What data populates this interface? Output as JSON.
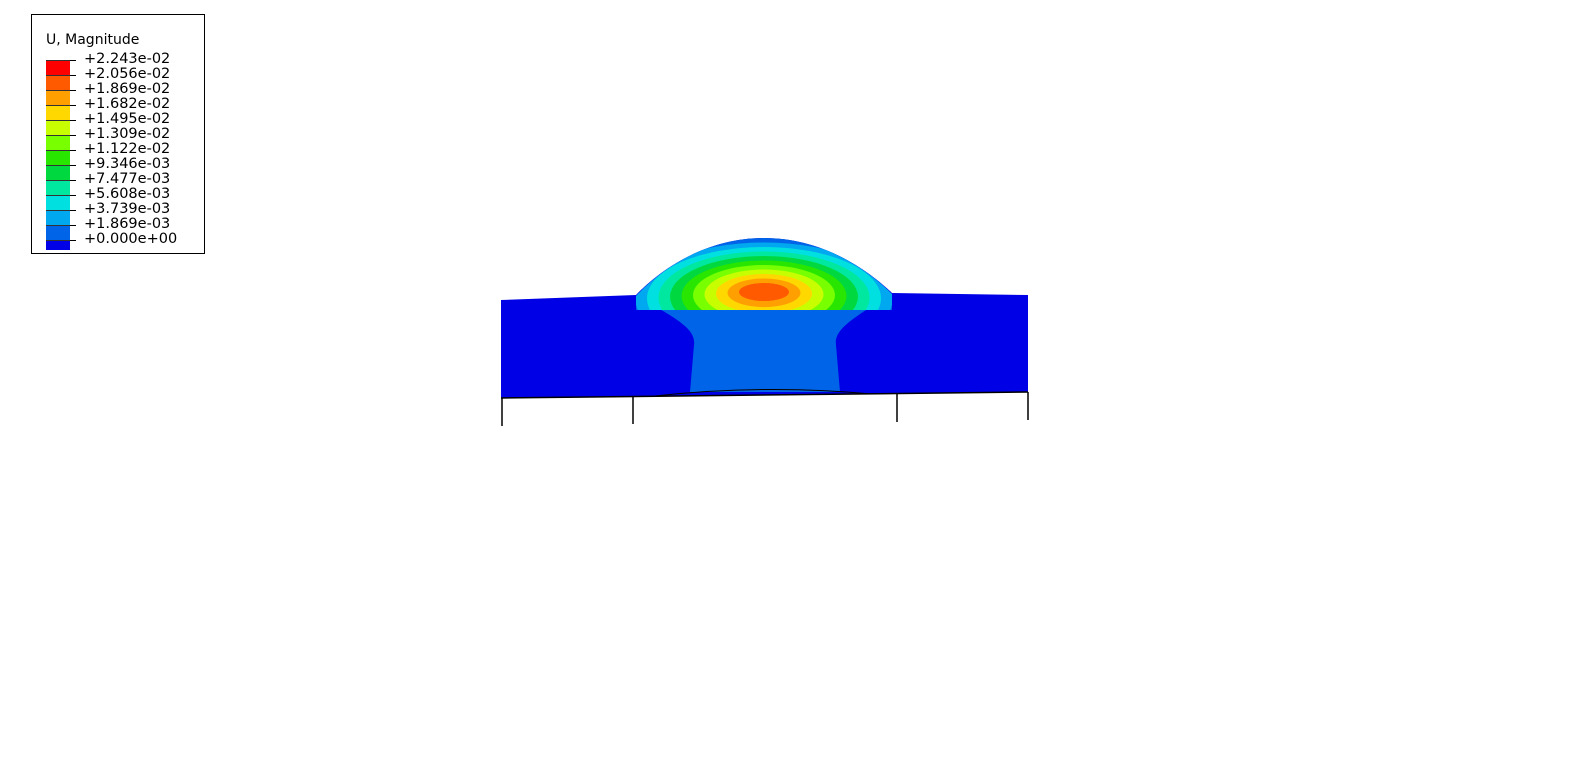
{
  "legend": {
    "title": "U, Magnitude",
    "labels": [
      "+2.243e-02",
      "+2.056e-02",
      "+1.869e-02",
      "+1.682e-02",
      "+1.495e-02",
      "+1.309e-02",
      "+1.122e-02",
      "+9.346e-03",
      "+7.477e-03",
      "+5.608e-03",
      "+3.739e-03",
      "+1.869e-03",
      "+0.000e+00"
    ],
    "colors": [
      "#ff0000",
      "#ff5a00",
      "#ffa000",
      "#ffd800",
      "#c8ff00",
      "#78ff00",
      "#28e600",
      "#00d840",
      "#00e8a0",
      "#00e0e0",
      "#00a8f0",
      "#0064e8",
      "#0000e6"
    ]
  },
  "model": {
    "base_color": "#0000e6",
    "column_color": "#0064e8"
  }
}
